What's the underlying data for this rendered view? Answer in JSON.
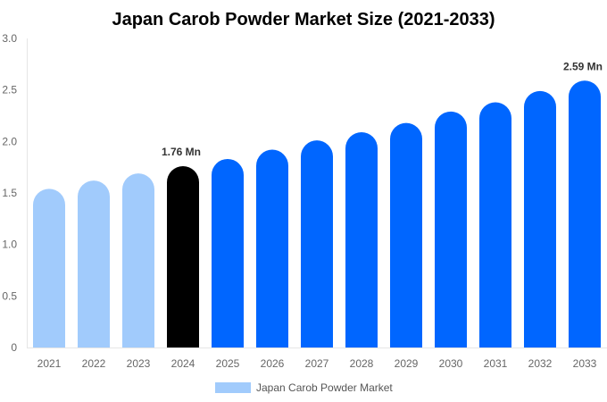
{
  "chart_data": {
    "type": "bar",
    "title": "Japan Carob Powder Market Size (2021-2033)",
    "xlabel": "",
    "ylabel": "",
    "categories": [
      "2021",
      "2022",
      "2023",
      "2024",
      "2025",
      "2026",
      "2027",
      "2028",
      "2029",
      "2030",
      "2031",
      "2032",
      "2033"
    ],
    "series": [
      {
        "name": "Japan Carob Powder Market",
        "values": [
          1.54,
          1.62,
          1.69,
          1.76,
          1.83,
          1.92,
          2.01,
          2.09,
          2.18,
          2.29,
          2.38,
          2.49,
          2.59
        ]
      }
    ],
    "ylim": [
      0,
      3.0
    ],
    "yticks": [
      "0",
      "0.5",
      "1.0",
      "1.5",
      "2.0",
      "2.5",
      "3.0"
    ],
    "data_labels": {
      "3": "1.76 Mn",
      "12": "2.59 Mn"
    },
    "colors": {
      "historical": "#a1cbfc",
      "current": "#000000",
      "forecast": "#0066ff"
    },
    "grid": false,
    "legend_position": "bottom"
  }
}
